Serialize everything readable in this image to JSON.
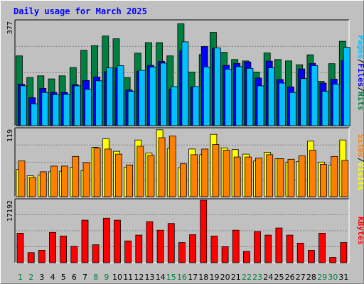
{
  "chart_data": {
    "type": "bar",
    "title": "Daily usage for March 2025",
    "categories": [
      "1",
      "2",
      "3",
      "4",
      "5",
      "6",
      "7",
      "8",
      "9",
      "10",
      "11",
      "12",
      "13",
      "14",
      "15",
      "16",
      "17",
      "18",
      "19",
      "20",
      "21",
      "22",
      "23",
      "24",
      "25",
      "26",
      "27",
      "28",
      "29",
      "30",
      "31"
    ],
    "weekend_days": [
      "1",
      "2",
      "8",
      "9",
      "15",
      "16",
      "22",
      "23",
      "29",
      "30"
    ],
    "colors": {
      "title": "#0000ff",
      "hits": "#008040",
      "files": "#0000ff",
      "pages": "#00c0ff",
      "visits": "#ffff00",
      "sites": "#ff8000",
      "kbytes": "#ff0000",
      "weekday_label": "#000000",
      "weekend_label": "#008040",
      "panel_bg": "#c0c0c0"
    },
    "legend_separator": "/",
    "panels": [
      {
        "name": "hits-files-pages",
        "ymax": 377,
        "ymax_label": "377",
        "legend": [
          "Pages",
          "Files",
          "Hits"
        ],
        "series": [
          {
            "name": "Hits",
            "values": [
              252,
              174,
              180,
              169,
              180,
              210,
              272,
              289,
              324,
              314,
              174,
              262,
              300,
              300,
              252,
              368,
              194,
              257,
              337,
              265,
              239,
              234,
              194,
              263,
              239,
              234,
              220,
              256,
              160,
              224,
              305
            ]
          },
          {
            "name": "Files",
            "values": [
              150,
              101,
              135,
              120,
              120,
              148,
              163,
              176,
              195,
              208,
              129,
              197,
              218,
              232,
              132,
              270,
              140,
              286,
              280,
              218,
              225,
              230,
              172,
              233,
              167,
              140,
              205,
              225,
              154,
              168,
              235
            ]
          },
          {
            "name": "Pages",
            "values": [
              144,
              79,
              120,
              112,
              113,
              144,
              131,
              162,
              209,
              217,
              124,
              200,
              212,
              226,
              141,
              303,
              141,
              212,
              281,
              204,
              213,
              207,
              144,
              209,
              154,
              120,
              170,
              217,
              124,
              150,
              283
            ]
          }
        ]
      },
      {
        "name": "visits-sites",
        "ymax": 119,
        "ymax_label": "119",
        "legend": [
          "Sites",
          "Visits"
        ],
        "series": [
          {
            "name": "Visits",
            "values": [
              48,
              37,
              38,
              44,
              45,
              52,
              46,
              87,
              102,
              80,
              52,
              100,
              77,
              118,
              85,
              51,
              84,
              74,
              110,
              86,
              83,
              75,
              63,
              78,
              67,
              61,
              62,
              98,
              61,
              56,
              100
            ]
          },
          {
            "name": "Sites",
            "values": [
              63,
              34,
              44,
              54,
              54,
              71,
              60,
              86,
              84,
              75,
              56,
              89,
              73,
              104,
              107,
              58,
              74,
              84,
              92,
              82,
              70,
              70,
              68,
              74,
              67,
              66,
              72,
              82,
              57,
              71,
              64
            ]
          }
        ]
      },
      {
        "name": "kbytes",
        "ymax": 17192,
        "ymax_label": "17192",
        "legend": [
          "KBytes"
        ],
        "series": [
          {
            "name": "KBytes",
            "values": [
              8130,
              2780,
              3430,
              8350,
              7350,
              4500,
              11700,
              4950,
              12250,
              11700,
              6000,
              7590,
              11300,
              8950,
              10800,
              5550,
              7690,
              17192,
              7350,
              4400,
              8950,
              3100,
              8560,
              7590,
              9550,
              7590,
              5400,
              3430,
              8130,
              1440,
              5550
            ]
          }
        ]
      }
    ]
  }
}
